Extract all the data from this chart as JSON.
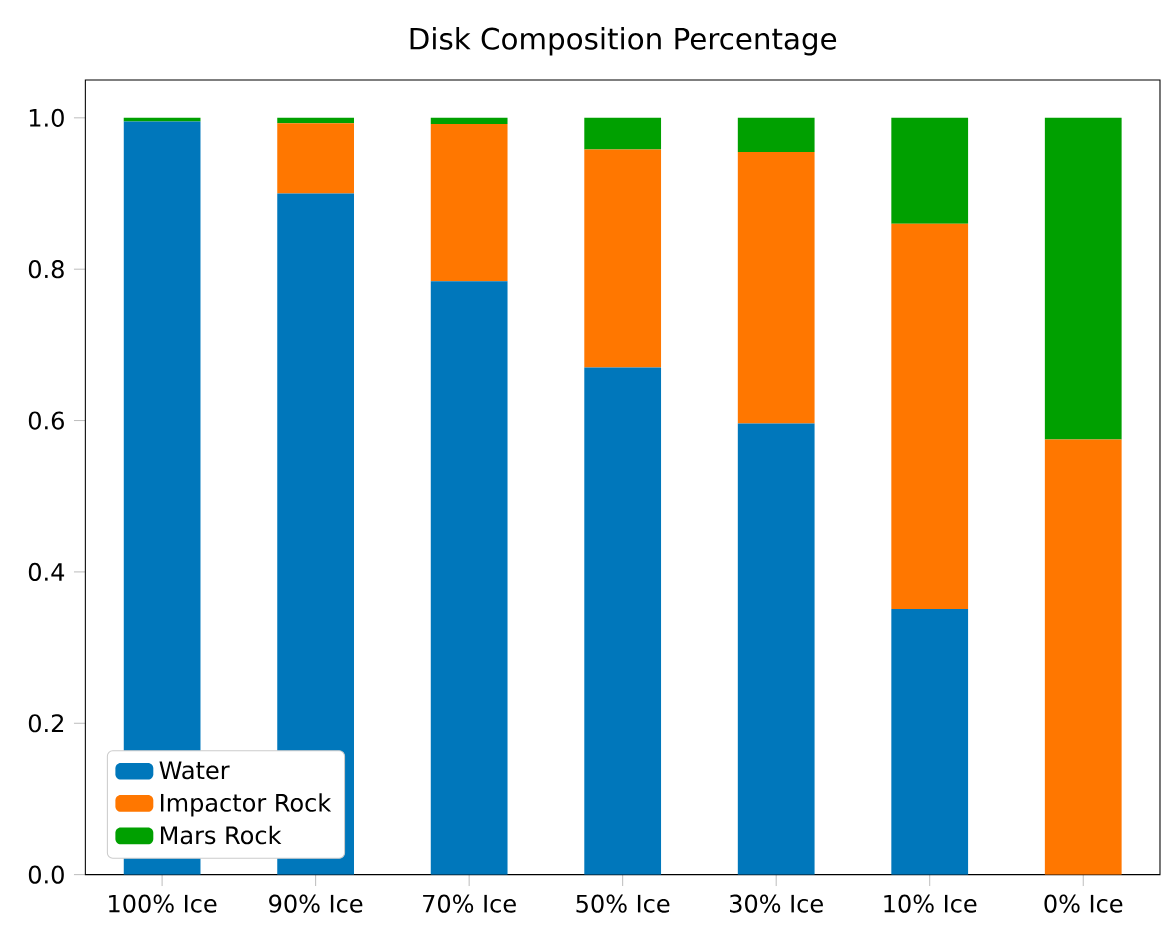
{
  "chart_data": {
    "type": "bar",
    "title": "Disk Composition Percentage",
    "stacked": true,
    "legend": "bottom left",
    "categories": [
      "100% Ice",
      "90% Ice",
      "70% Ice",
      "50% Ice",
      "30% Ice",
      "10% Ice",
      "0% Ice"
    ],
    "series": [
      {
        "name": "Water",
        "color": "#0077bb",
        "values": [
          0.995,
          0.9,
          0.784,
          0.67,
          0.596,
          0.351,
          0.0
        ]
      },
      {
        "name": "Impactor Rock",
        "color": "#ff7700",
        "values": [
          0.0,
          0.093,
          0.208,
          0.288,
          0.359,
          0.509,
          0.575
        ]
      },
      {
        "name": "Mars Rock",
        "color": "#00a000",
        "values": [
          0.005,
          0.007,
          0.008,
          0.042,
          0.045,
          0.14,
          0.425
        ]
      }
    ],
    "ylim": [
      0,
      1.05
    ],
    "yticks": [
      {
        "value": 0,
        "label": "0.0"
      },
      {
        "value": 0.2,
        "label": "0.2"
      },
      {
        "value": 0.4,
        "label": "0.4"
      },
      {
        "value": 0.6,
        "label": "0.6"
      },
      {
        "value": 0.8,
        "label": "0.8"
      },
      {
        "value": 1.0,
        "label": "1.0"
      }
    ]
  }
}
